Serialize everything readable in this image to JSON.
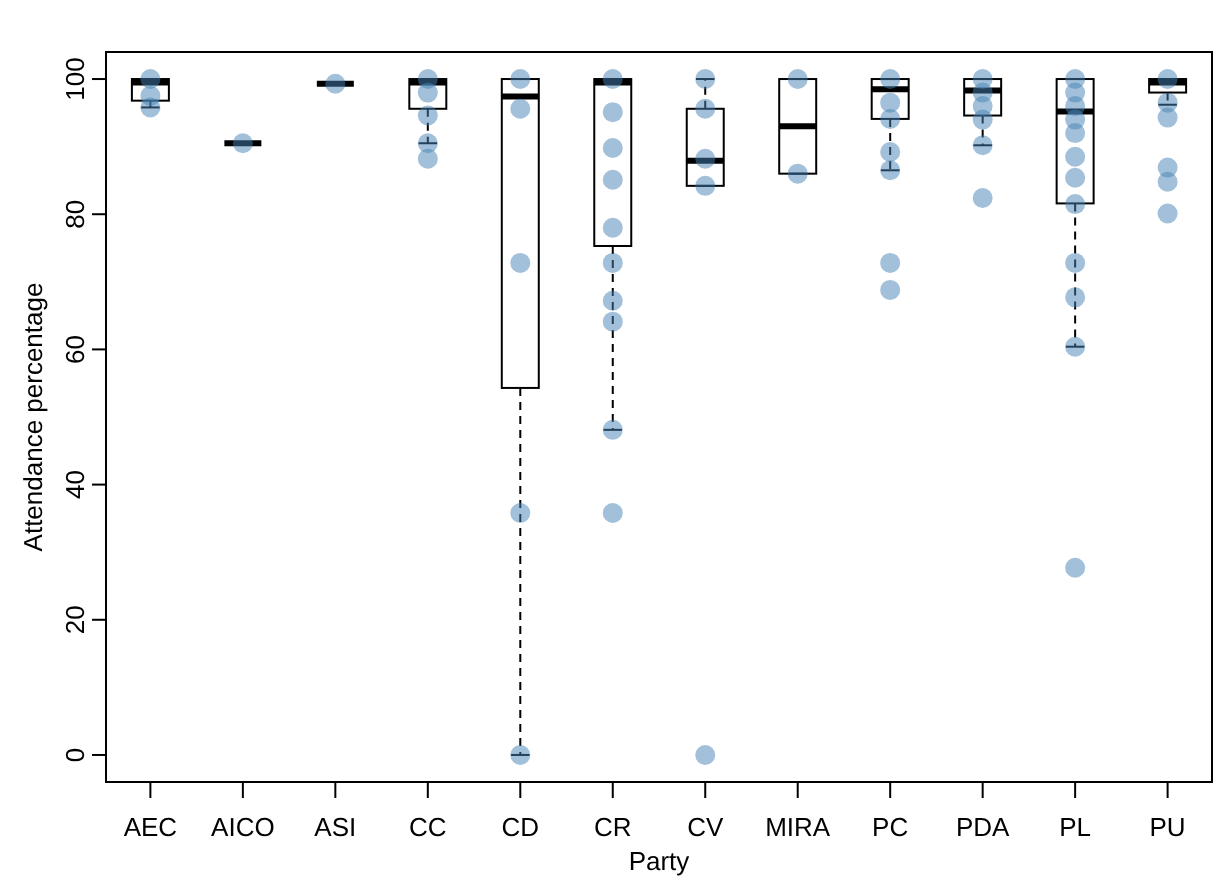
{
  "chart_data": {
    "type": "box",
    "xlabel": "Party",
    "ylabel": "Attendance percentage",
    "categories": [
      "AEC",
      "AICO",
      "ASI",
      "CC",
      "CD",
      "CR",
      "CV",
      "MIRA",
      "PC",
      "PDA",
      "PL",
      "PU"
    ],
    "boxes": [
      {
        "low": 95.8,
        "q1": 96.8,
        "median": 99.5,
        "q3": 100,
        "high": 100
      },
      {
        "low": 90.5,
        "q1": 90.5,
        "median": 90.5,
        "q3": 90.5,
        "high": 90.5
      },
      {
        "low": 99.3,
        "q1": 99.3,
        "median": 99.3,
        "q3": 99.3,
        "high": 99.3
      },
      {
        "low": 90.5,
        "q1": 95.6,
        "median": 99.5,
        "q3": 100,
        "high": 100
      },
      {
        "low": 0,
        "q1": 54.3,
        "median": 97.4,
        "q3": 100,
        "high": 100
      },
      {
        "low": 48.1,
        "q1": 75.3,
        "median": 99.5,
        "q3": 100,
        "high": 100
      },
      {
        "low": 84.2,
        "q1": 84.2,
        "median": 87.9,
        "q3": 95.6,
        "high": 100
      },
      {
        "low": 86,
        "q1": 86,
        "median": 93,
        "q3": 100,
        "high": 100
      },
      {
        "low": 86.5,
        "q1": 94.1,
        "median": 98.5,
        "q3": 100,
        "high": 100
      },
      {
        "low": 90.2,
        "q1": 94.6,
        "median": 98.3,
        "q3": 100,
        "high": 100
      },
      {
        "low": 60.4,
        "q1": 81.6,
        "median": 95.2,
        "q3": 100,
        "high": 100
      },
      {
        "low": 96.2,
        "q1": 98,
        "median": 99.5,
        "q3": 100,
        "high": 100
      }
    ],
    "series": [
      {
        "type": "scatter",
        "color": "#4682b4",
        "marker": "circle",
        "x": [
          "AEC",
          "AEC",
          "AEC",
          "AICO",
          "ASI",
          "CC",
          "CC",
          "CC",
          "CC",
          "CC",
          "CD",
          "CD",
          "CD",
          "CD",
          "CD",
          "CR",
          "CR",
          "CR",
          "CR",
          "CR",
          "CR",
          "CR",
          "CR",
          "CR",
          "CR",
          "CV",
          "CV",
          "CV",
          "CV",
          "CV",
          "MIRA",
          "MIRA",
          "PC",
          "PC",
          "PC",
          "PC",
          "PC",
          "PC",
          "PC",
          "PDA",
          "PDA",
          "PDA",
          "PDA",
          "PDA",
          "PDA",
          "PL",
          "PL",
          "PL",
          "PL",
          "PL",
          "PL",
          "PL",
          "PL",
          "PL",
          "PL",
          "PL",
          "PL",
          "PU",
          "PU",
          "PU",
          "PU",
          "PU",
          "PU"
        ],
        "values": [
          100,
          97.5,
          95.8,
          90.5,
          99.3,
          100,
          98,
          94.6,
          90.5,
          88.2,
          100,
          95.6,
          72.8,
          35.8,
          0,
          100,
          95.1,
          89.8,
          85.1,
          78,
          72.8,
          67.2,
          64.1,
          48.1,
          35.8,
          100,
          95.6,
          88.2,
          84.2,
          0,
          100,
          86,
          100,
          96.5,
          94.1,
          89.2,
          86.5,
          72.8,
          68.8,
          100,
          98,
          96,
          94,
          90.2,
          82.4,
          100,
          98,
          96,
          94,
          92,
          88.5,
          85.4,
          81.5,
          72.8,
          67.7,
          60.4,
          27.7,
          100,
          96.5,
          94.3,
          86.9,
          84.8,
          80.1
        ]
      }
    ],
    "ylim": [
      -4,
      104
    ],
    "yticks": [
      0,
      20,
      40,
      60,
      80,
      100
    ]
  }
}
